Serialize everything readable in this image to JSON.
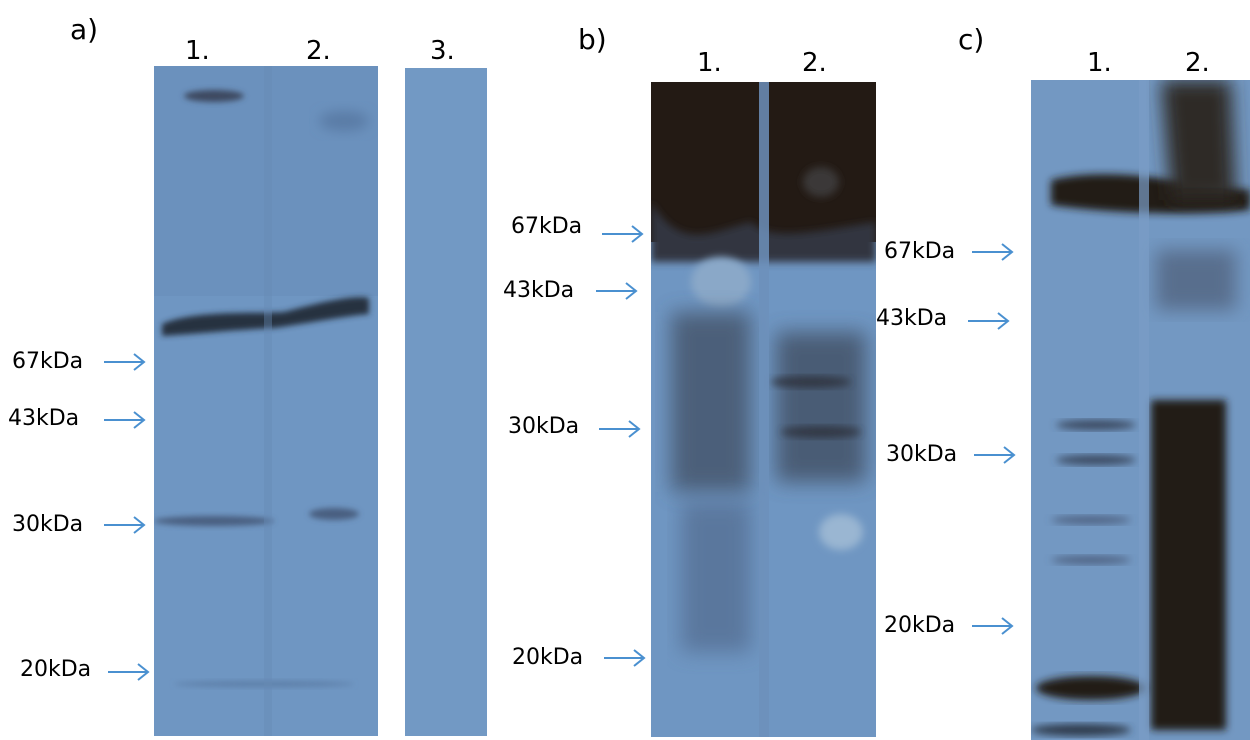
{
  "panels": {
    "a": {
      "label": "a)",
      "lanes": [
        "1.",
        "2.",
        "3."
      ],
      "markers": [
        "67kDa",
        "43kDa",
        "30kDa",
        "20kDa"
      ]
    },
    "b": {
      "label": "b)",
      "lanes": [
        "1.",
        "2."
      ],
      "markers": [
        "67kDa",
        "43kDa",
        "30kDa",
        "20kDa"
      ]
    },
    "c": {
      "label": "c)",
      "lanes": [
        "1.",
        "2."
      ],
      "markers": [
        "67kDa",
        "43kDa",
        "30kDa",
        "20kDa"
      ]
    }
  },
  "colors": {
    "membrane": "#6f96c2",
    "membrane_dark": "#5f86b3",
    "band": "#2f3b4e",
    "dark_band": "#231a14",
    "arrow": "#4a90d0"
  }
}
